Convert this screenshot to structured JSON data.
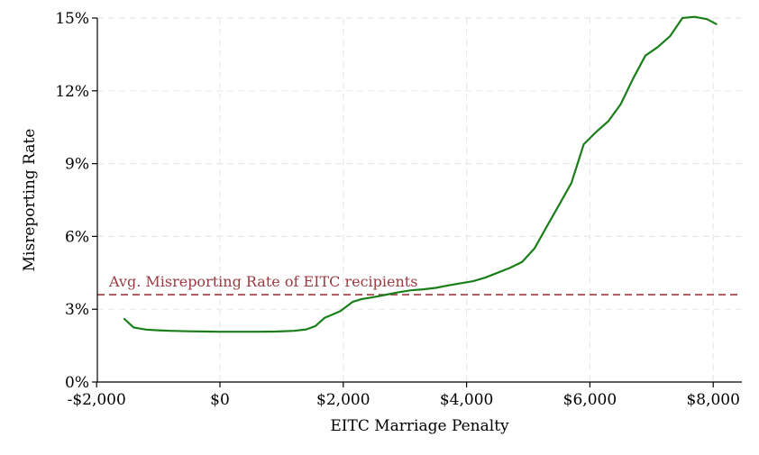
{
  "chart_data": {
    "type": "line",
    "title": "",
    "xlabel": "EITC Marriage Penalty",
    "ylabel": "Misreporting Rate",
    "xlim": [
      -2000,
      8500
    ],
    "ylim": [
      0,
      15
    ],
    "x_ticks": [
      -2000,
      0,
      2000,
      4000,
      6000,
      8000
    ],
    "x_tick_labels": [
      "-$2,000",
      "$0",
      "$2,000",
      "$4,000",
      "$6,000",
      "$8,000"
    ],
    "y_ticks": [
      0,
      3,
      6,
      9,
      12,
      15
    ],
    "y_tick_labels": [
      "0%",
      "3%",
      "6%",
      "9%",
      "12%",
      "15%"
    ],
    "grid": true,
    "series": [
      {
        "color": "#1a7f1a",
        "x": [
          -1550,
          -1400,
          -1200,
          -1000,
          -800,
          -500,
          -200,
          0,
          300,
          600,
          900,
          1200,
          1400,
          1550,
          1700,
          1800,
          1950,
          2150,
          2300,
          2500,
          2700,
          2900,
          3100,
          3300,
          3500,
          3700,
          3900,
          4100,
          4300,
          4500,
          4700,
          4900,
          5100,
          5300,
          5500,
          5700,
          5900,
          6100,
          6300,
          6500,
          6700,
          6900,
          7100,
          7300,
          7500,
          7700,
          7900,
          8050
        ],
        "y": [
          2.6,
          2.25,
          2.16,
          2.13,
          2.11,
          2.09,
          2.08,
          2.07,
          2.07,
          2.07,
          2.08,
          2.11,
          2.17,
          2.31,
          2.65,
          2.75,
          2.92,
          3.3,
          3.42,
          3.5,
          3.6,
          3.7,
          3.78,
          3.82,
          3.88,
          3.98,
          4.07,
          4.15,
          4.3,
          4.5,
          4.7,
          4.95,
          5.5,
          6.4,
          7.3,
          8.2,
          9.8,
          10.3,
          10.75,
          11.45,
          12.5,
          13.45,
          13.8,
          14.25,
          15.0,
          15.05,
          14.95,
          14.75
        ]
      }
    ],
    "reference_line": {
      "y": 3.6,
      "label": "Avg. Misreporting Rate of EITC recipients",
      "color": "#9b3a40",
      "style": "dashed"
    }
  }
}
